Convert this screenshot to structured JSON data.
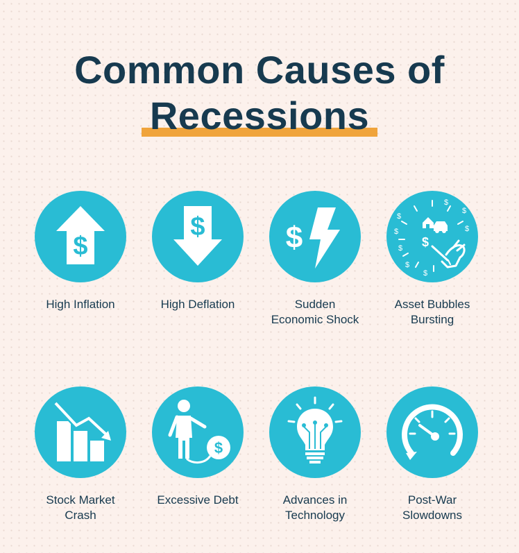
{
  "title": {
    "line1": "Common Causes of",
    "line2": "Recessions"
  },
  "colors": {
    "background": "#fcf1ec",
    "title": "#173a4f",
    "accent_underline": "#f0a43c",
    "circle": "#29bcd4",
    "icon": "#ffffff"
  },
  "causes": [
    {
      "label": "High Inflation",
      "icon": "dollar-up-arrow-icon"
    },
    {
      "label": "High Deflation",
      "icon": "dollar-down-arrow-icon"
    },
    {
      "label": "Sudden\nEconomic Shock",
      "icon": "dollar-lightning-icon"
    },
    {
      "label": "Asset Bubbles\nBursting",
      "icon": "bubble-burst-icon"
    },
    {
      "label": "Stock Market\nCrash",
      "icon": "falling-bar-chart-icon"
    },
    {
      "label": "Excessive Debt",
      "icon": "ball-and-chain-debt-icon"
    },
    {
      "label": "Advances in\nTechnology",
      "icon": "circuit-lightbulb-icon"
    },
    {
      "label": "Post-War\nSlowdowns",
      "icon": "speedometer-icon"
    }
  ]
}
